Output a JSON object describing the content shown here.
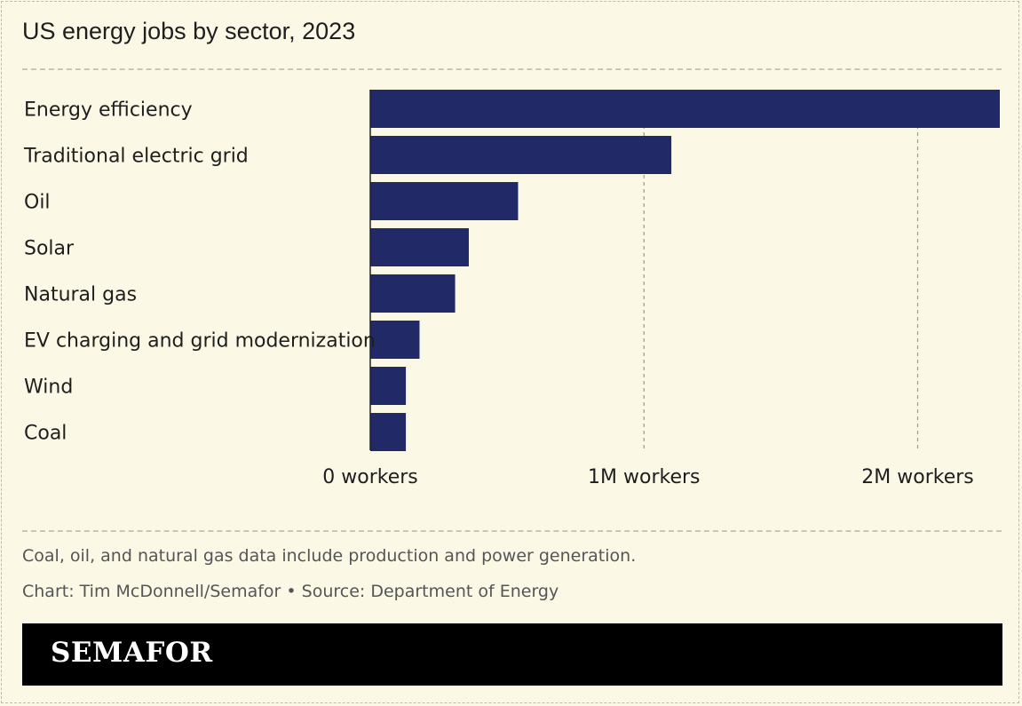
{
  "title": "US energy jobs by sector, 2023",
  "note": "Coal, oil, and natural gas data include production and power generation.",
  "source": "Chart: Tim McDonnell/Semafor • Source: Department of Energy",
  "brand": "SEMAFOR",
  "colors": {
    "background": "#fbf8e6",
    "bar": "#212a66",
    "brand_bar": "#000000"
  },
  "chart_data": {
    "type": "bar",
    "orientation": "horizontal",
    "categories": [
      "Energy efficiency",
      "Traditional electric grid",
      "Oil",
      "Solar",
      "Natural gas",
      "EV charging and grid modernization",
      "Wind",
      "Coal"
    ],
    "values": [
      2300000,
      1100000,
      540000,
      360000,
      310000,
      180000,
      130000,
      130000
    ],
    "xlim": [
      0,
      2300000
    ],
    "xticks": [
      0,
      1000000,
      2000000
    ],
    "xtick_labels": [
      "0 workers",
      "1M workers",
      "2M workers"
    ],
    "grid": "vertical dashed"
  }
}
